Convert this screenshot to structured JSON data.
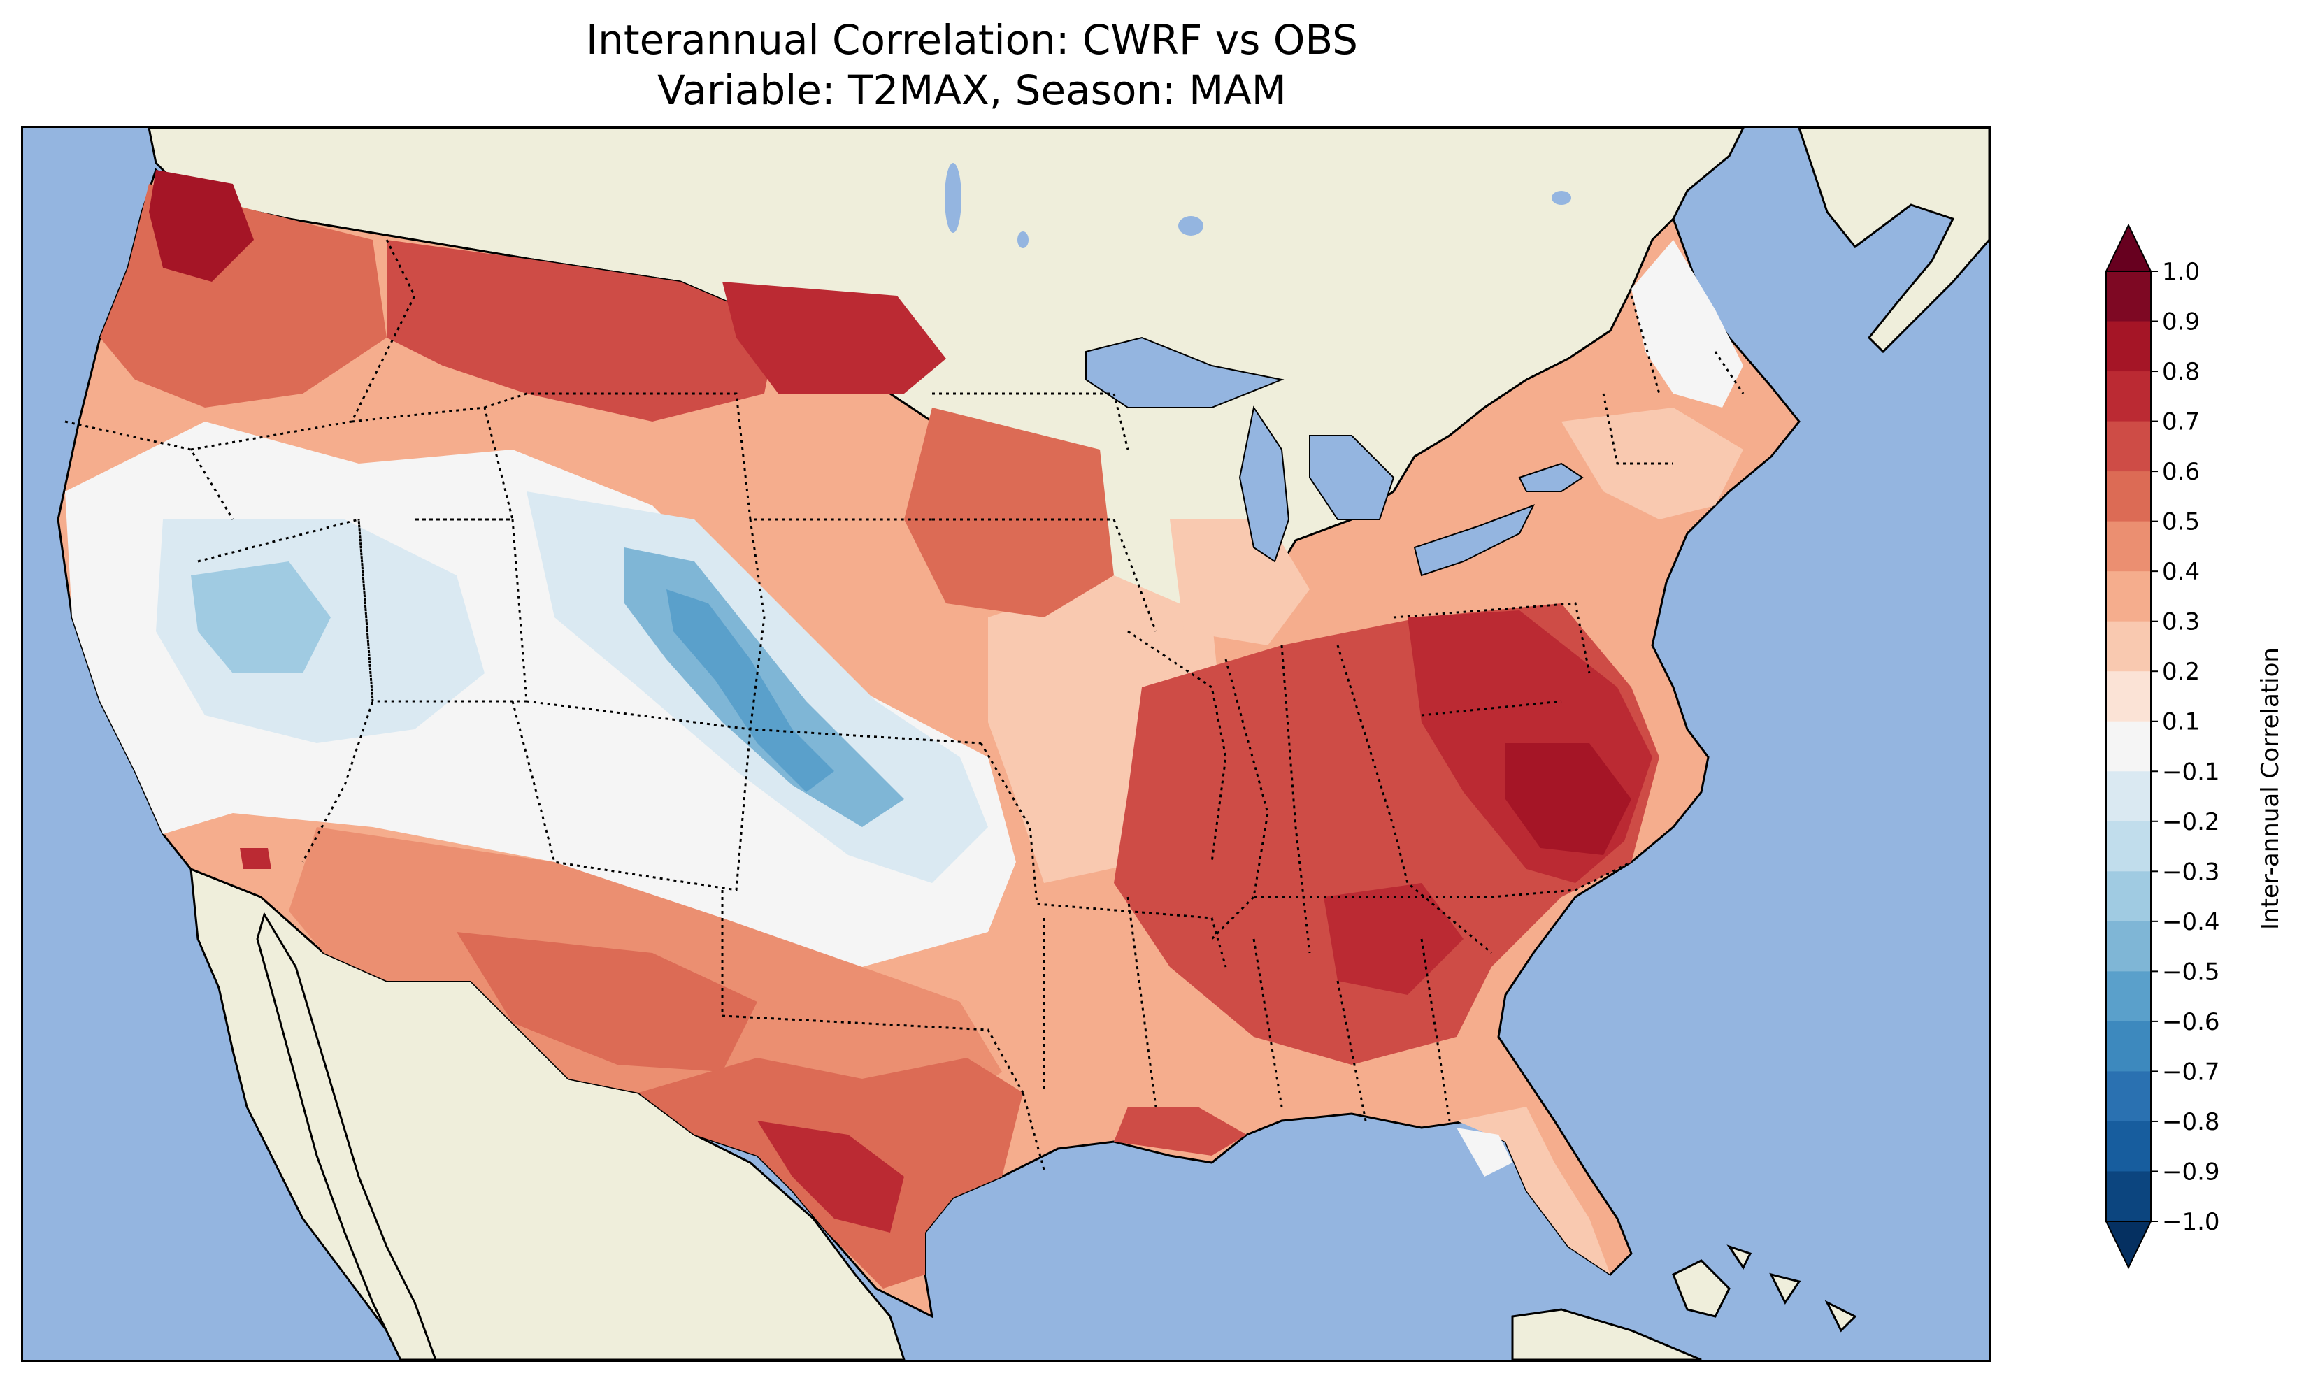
{
  "title": {
    "line1": "Interannual Correlation: CWRF vs OBS",
    "line2": "Variable: T2MAX, Season: MAM"
  },
  "colorbar": {
    "label": "Inter-annual Correlation",
    "ticks": [
      "1.0",
      "0.9",
      "0.8",
      "0.7",
      "0.6",
      "0.5",
      "0.4",
      "0.3",
      "0.2",
      "0.1",
      "−0.1",
      "−0.2",
      "−0.3",
      "−0.4",
      "−0.5",
      "−0.6",
      "−0.7",
      "−0.8",
      "−0.9",
      "−1.0"
    ],
    "colors_top_to_bottom": [
      "#67001f",
      "#7e0823",
      "#a51526",
      "#bb2a33",
      "#ce4c46",
      "#dc6b55",
      "#eb8f71",
      "#f5ad8d",
      "#f9c9b0",
      "#fbe3d6",
      "#f5f5f5",
      "#dae9f2",
      "#c1ddec",
      "#a0cbe2",
      "#7fb6d6",
      "#5aa0cb",
      "#3d89be",
      "#2a71b1",
      "#175d9e",
      "#0c457f",
      "#053061"
    ],
    "extend": "both"
  },
  "map": {
    "ocean_color": "#94b5e0",
    "land_color": "#efeedb",
    "lake_color": "#94b5e0",
    "projection": "Lambert Conformal, continental US"
  }
}
